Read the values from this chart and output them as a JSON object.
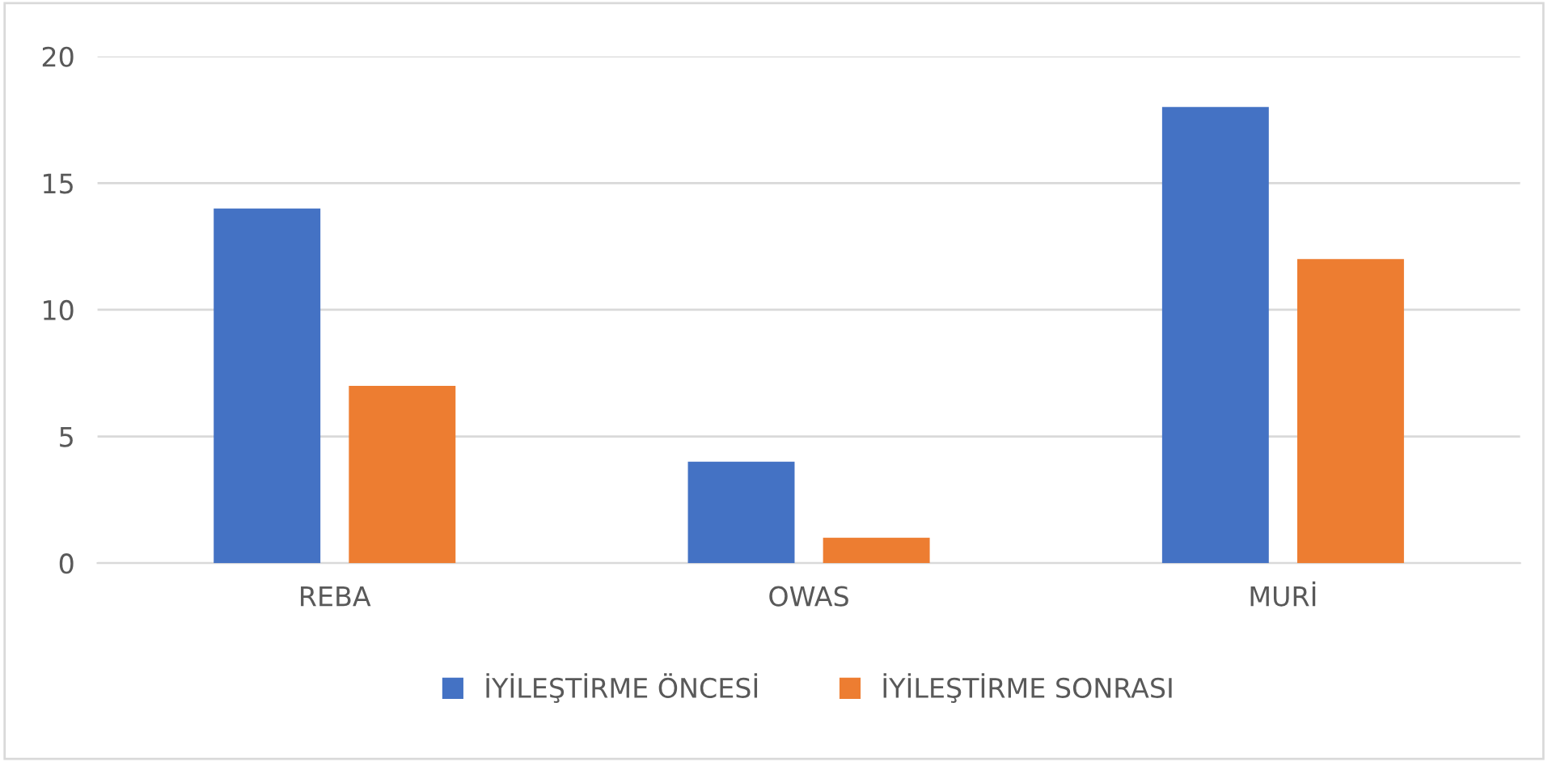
{
  "chart_data": {
    "type": "bar",
    "categories": [
      "REBA",
      "OWAS",
      "MURİ"
    ],
    "series": [
      {
        "name": "İYİLEŞTİRME ÖNCESİ",
        "color": "#4472c4",
        "values": [
          14,
          4,
          18
        ]
      },
      {
        "name": "İYİLEŞTİRME SONRASI",
        "color": "#ed7d31",
        "values": [
          7,
          1,
          12
        ]
      }
    ],
    "ylim": [
      0,
      20
    ],
    "yticks": [
      0,
      5,
      10,
      15,
      20
    ],
    "grid": "y",
    "legend": "bottom"
  }
}
